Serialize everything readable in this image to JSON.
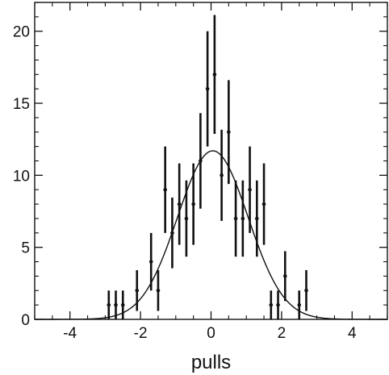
{
  "chart_data": {
    "type": "scatter",
    "title": "",
    "xlabel": "pulls",
    "ylabel": "",
    "xlim": [
      -5,
      5
    ],
    "ylim": [
      0,
      22
    ],
    "x_ticks": [
      -4,
      -2,
      0,
      2,
      4
    ],
    "x_tick_labels": [
      "-4",
      "-2",
      "0",
      "2",
      "4"
    ],
    "y_ticks": [
      0,
      5,
      10,
      15,
      20
    ],
    "y_tick_labels": [
      "0",
      "5",
      "10",
      "15",
      "20"
    ],
    "grid": false,
    "legend": "none",
    "colors": {
      "axis": "#111111",
      "points": "#111111",
      "fit": "#111111"
    },
    "series": [
      {
        "type": "scatter-errorbar",
        "points": [
          {
            "x": -2.9,
            "y": 1
          },
          {
            "x": -2.7,
            "y": 1
          },
          {
            "x": -2.5,
            "y": 1
          },
          {
            "x": -2.1,
            "y": 2
          },
          {
            "x": -1.7,
            "y": 4
          },
          {
            "x": -1.5,
            "y": 2
          },
          {
            "x": -1.3,
            "y": 9
          },
          {
            "x": -1.1,
            "y": 6
          },
          {
            "x": -0.9,
            "y": 8
          },
          {
            "x": -0.7,
            "y": 7
          },
          {
            "x": -0.5,
            "y": 8
          },
          {
            "x": -0.3,
            "y": 11
          },
          {
            "x": -0.1,
            "y": 16
          },
          {
            "x": 0.1,
            "y": 17
          },
          {
            "x": 0.3,
            "y": 10
          },
          {
            "x": 0.5,
            "y": 13
          },
          {
            "x": 0.7,
            "y": 7
          },
          {
            "x": 0.9,
            "y": 7
          },
          {
            "x": 1.1,
            "y": 9
          },
          {
            "x": 1.3,
            "y": 7
          },
          {
            "x": 1.5,
            "y": 8
          },
          {
            "x": 1.7,
            "y": 1
          },
          {
            "x": 1.9,
            "y": 1
          },
          {
            "x": 2.1,
            "y": 3
          },
          {
            "x": 2.5,
            "y": 1
          },
          {
            "x": 2.7,
            "y": 2
          }
        ]
      },
      {
        "type": "gaussian-fit",
        "amplitude": 11.7,
        "mean": 0.05,
        "sigma": 1.0,
        "x_range": [
          -5,
          5
        ]
      }
    ]
  }
}
